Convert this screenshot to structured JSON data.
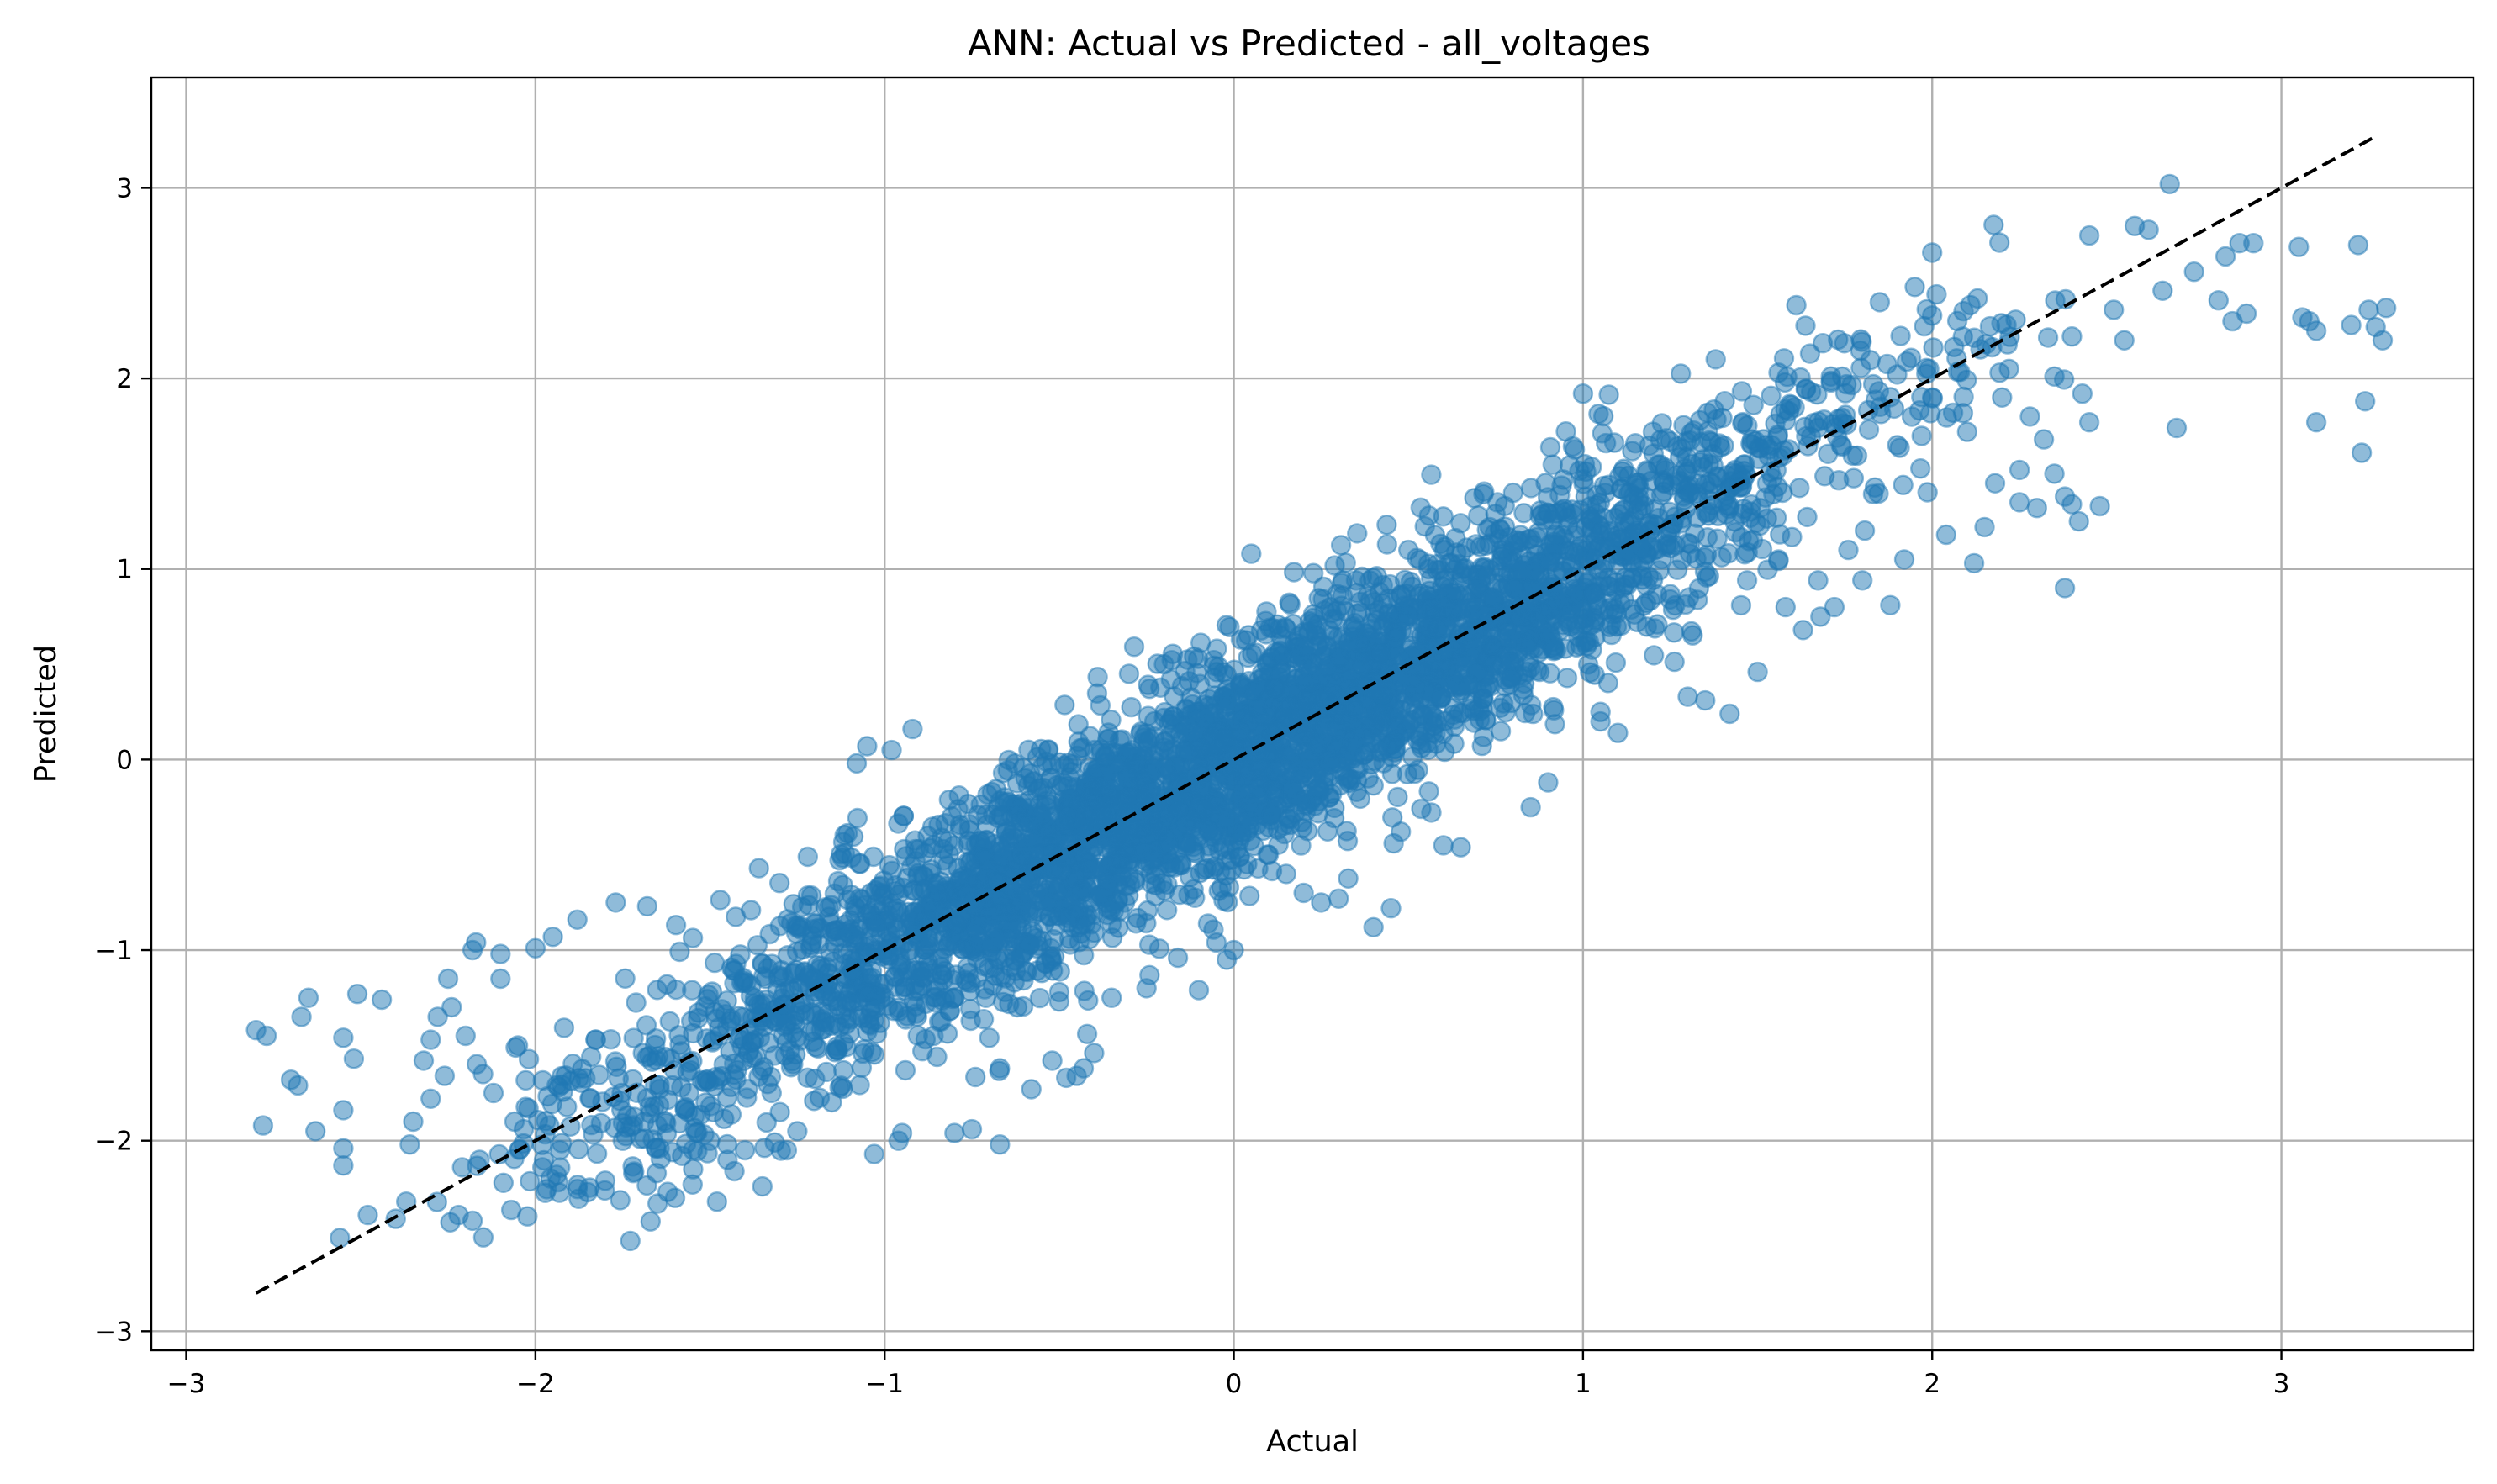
{
  "chart_data": {
    "type": "scatter",
    "title": "ANN: Actual vs Predicted - all_voltages",
    "xlabel": "Actual",
    "ylabel": "Predicted",
    "xlim": [
      -3.1,
      3.55
    ],
    "ylim": [
      -3.1,
      3.58
    ],
    "xticks": [
      -3,
      -2,
      -1,
      0,
      1,
      2,
      3
    ],
    "yticks": [
      -3,
      -2,
      -1,
      0,
      1,
      2,
      3
    ],
    "grid": true,
    "colors": {
      "points": "#1f77b4",
      "reference_line": "#000000",
      "grid": "#b0b0b0"
    },
    "reference_line": {
      "style": "dashed",
      "x": [
        -2.8,
        3.27
      ],
      "y": [
        -2.8,
        3.27
      ]
    },
    "distribution": {
      "n_dense": 4500,
      "center": 0,
      "spread": 0.85,
      "residual_sd": 0.28
    },
    "points": [
      [
        -2.8,
        -1.42
      ],
      [
        -2.77,
        -1.45
      ],
      [
        -2.78,
        -1.92
      ],
      [
        -2.7,
        -1.68
      ],
      [
        -2.68,
        -1.71
      ],
      [
        -2.67,
        -1.35
      ],
      [
        -2.65,
        -1.25
      ],
      [
        -2.63,
        -1.95
      ],
      [
        -2.56,
        -2.51
      ],
      [
        -2.55,
        -2.13
      ],
      [
        -2.55,
        -2.04
      ],
      [
        -2.55,
        -1.84
      ],
      [
        -2.55,
        -1.46
      ],
      [
        -2.52,
        -1.57
      ],
      [
        -2.51,
        -1.23
      ],
      [
        -2.48,
        -2.39
      ],
      [
        -2.44,
        -1.26
      ],
      [
        -2.4,
        -2.41
      ],
      [
        -2.37,
        -2.32
      ],
      [
        -2.36,
        -2.02
      ],
      [
        -2.35,
        -1.9
      ],
      [
        -2.3,
        -1.47
      ],
      [
        -2.26,
        -1.66
      ],
      [
        -2.22,
        -2.39
      ],
      [
        -2.21,
        -2.14
      ],
      [
        -2.18,
        -2.42
      ],
      [
        -2.17,
        -0.96
      ],
      [
        -2.1,
        -1.02
      ],
      [
        -2.02,
        -1.83
      ],
      [
        -2.0,
        -0.99
      ],
      [
        -1.98,
        -2.14
      ],
      [
        -1.95,
        -0.93
      ],
      [
        -1.88,
        -0.84
      ],
      [
        -1.85,
        -2.27
      ],
      [
        -1.8,
        -2.21
      ],
      [
        -1.77,
        -0.75
      ],
      [
        -1.72,
        -2.17
      ],
      [
        -1.68,
        -0.77
      ],
      [
        -1.65,
        -2.33
      ],
      [
        -1.6,
        -2.3
      ],
      [
        -1.55,
        -2.23
      ],
      [
        -1.48,
        -2.32
      ],
      [
        -1.43,
        -2.16
      ],
      [
        -1.36,
        -0.57
      ],
      [
        -1.35,
        -2.24
      ],
      [
        -1.28,
        -2.05
      ],
      [
        -1.22,
        -0.51
      ],
      [
        -1.08,
        -0.02
      ],
      [
        -1.05,
        0.07
      ],
      [
        -1.03,
        -2.07
      ],
      [
        -0.98,
        0.05
      ],
      [
        -0.96,
        -2.0
      ],
      [
        -0.95,
        -1.96
      ],
      [
        -0.92,
        0.16
      ],
      [
        -0.85,
        -1.56
      ],
      [
        -0.8,
        -1.96
      ],
      [
        -0.75,
        -1.94
      ],
      [
        -0.7,
        -1.46
      ],
      [
        -0.67,
        -1.62
      ],
      [
        -0.67,
        -2.02
      ],
      [
        -0.62,
        -1.3
      ],
      [
        -0.58,
        -1.73
      ],
      [
        -0.55,
        -1.12
      ],
      [
        -0.52,
        -1.58
      ],
      [
        -0.5,
        -1.22
      ],
      [
        -0.48,
        -1.67
      ],
      [
        -0.45,
        -1.66
      ],
      [
        -0.43,
        -1.62
      ],
      [
        -0.42,
        -1.44
      ],
      [
        -0.4,
        -1.54
      ],
      [
        -0.35,
        -1.25
      ],
      [
        -0.3,
        0.45
      ],
      [
        -0.28,
        -0.86
      ],
      [
        -0.25,
        -1.2
      ],
      [
        -0.2,
        0.5
      ],
      [
        -0.18,
        0.42
      ],
      [
        -0.16,
        -1.04
      ],
      [
        -0.13,
        -0.71
      ],
      [
        -0.1,
        -1.21
      ],
      [
        -0.05,
        -0.96
      ],
      [
        -0.02,
        -1.05
      ],
      [
        0.0,
        -1.0
      ],
      [
        0.02,
        0.63
      ],
      [
        0.05,
        1.08
      ],
      [
        0.1,
        -0.5
      ],
      [
        0.15,
        -0.6
      ],
      [
        0.2,
        -0.7
      ],
      [
        0.25,
        -0.75
      ],
      [
        0.3,
        -0.73
      ],
      [
        0.35,
        0.94
      ],
      [
        0.4,
        -0.88
      ],
      [
        0.45,
        -0.78
      ],
      [
        0.5,
        1.1
      ],
      [
        0.6,
        -0.45
      ],
      [
        0.65,
        -0.46
      ],
      [
        0.7,
        1.28
      ],
      [
        0.8,
        1.4
      ],
      [
        0.85,
        -0.25
      ],
      [
        0.9,
        -0.12
      ],
      [
        0.95,
        1.3
      ],
      [
        1.0,
        1.92
      ],
      [
        1.05,
        0.25
      ],
      [
        1.05,
        0.2
      ],
      [
        1.1,
        0.14
      ],
      [
        1.15,
        1.66
      ],
      [
        1.2,
        1.72
      ],
      [
        1.25,
        1.67
      ],
      [
        1.3,
        0.33
      ],
      [
        1.35,
        0.31
      ],
      [
        1.38,
        2.1
      ],
      [
        1.42,
        0.24
      ],
      [
        1.47,
        0.94
      ],
      [
        1.5,
        0.46
      ],
      [
        1.56,
        2.03
      ],
      [
        1.58,
        0.8
      ],
      [
        1.63,
        0.68
      ],
      [
        1.65,
        2.13
      ],
      [
        1.68,
        0.75
      ],
      [
        1.72,
        0.8
      ],
      [
        1.76,
        1.1
      ],
      [
        1.8,
        0.94
      ],
      [
        1.85,
        2.4
      ],
      [
        1.88,
        0.81
      ],
      [
        1.92,
        1.05
      ],
      [
        1.95,
        2.48
      ],
      [
        2.0,
        2.66
      ],
      [
        2.0,
        2.33
      ],
      [
        2.04,
        1.18
      ],
      [
        2.06,
        1.82
      ],
      [
        2.1,
        1.72
      ],
      [
        2.12,
        1.03
      ],
      [
        2.13,
        2.42
      ],
      [
        2.18,
        1.45
      ],
      [
        2.2,
        1.9
      ],
      [
        2.22,
        2.05
      ],
      [
        2.25,
        1.35
      ],
      [
        2.28,
        1.8
      ],
      [
        2.3,
        1.32
      ],
      [
        2.32,
        1.68
      ],
      [
        2.35,
        2.01
      ],
      [
        2.38,
        1.38
      ],
      [
        2.4,
        2.22
      ],
      [
        2.43,
        1.92
      ],
      [
        2.45,
        2.75
      ],
      [
        2.48,
        1.33
      ],
      [
        2.52,
        2.36
      ],
      [
        2.55,
        2.2
      ],
      [
        2.58,
        2.8
      ],
      [
        2.62,
        2.78
      ],
      [
        2.66,
        2.46
      ],
      [
        2.68,
        3.02
      ],
      [
        2.7,
        1.74
      ],
      [
        2.75,
        2.56
      ],
      [
        2.82,
        2.41
      ],
      [
        2.84,
        2.64
      ],
      [
        2.86,
        2.3
      ],
      [
        2.88,
        2.71
      ],
      [
        2.9,
        2.34
      ],
      [
        2.92,
        2.71
      ],
      [
        3.05,
        2.69
      ],
      [
        3.06,
        2.32
      ],
      [
        3.08,
        2.3
      ],
      [
        3.1,
        1.77
      ],
      [
        3.2,
        2.28
      ],
      [
        3.22,
        2.7
      ],
      [
        3.23,
        1.61
      ],
      [
        3.24,
        1.88
      ],
      [
        3.25,
        2.36
      ],
      [
        3.27,
        2.27
      ],
      [
        3.29,
        2.2
      ],
      [
        3.3,
        2.37
      ],
      [
        3.1,
        2.25
      ],
      [
        2.0,
        1.9
      ],
      [
        1.9,
        1.65
      ],
      [
        2.15,
        1.22
      ],
      [
        2.25,
        1.52
      ],
      [
        2.38,
        0.9
      ],
      [
        2.4,
        1.34
      ],
      [
        2.35,
        1.5
      ],
      [
        2.45,
        1.77
      ],
      [
        2.42,
        1.25
      ],
      [
        -2.25,
        -1.15
      ],
      [
        -2.3,
        -1.78
      ],
      [
        -2.15,
        -1.65
      ],
      [
        -2.1,
        -1.15
      ],
      [
        -2.12,
        -1.75
      ],
      [
        -2.05,
        -1.5
      ],
      [
        -2.2,
        -1.45
      ],
      [
        -2.18,
        -1.0
      ],
      [
        -2.28,
        -1.35
      ],
      [
        -2.32,
        -1.58
      ],
      [
        -2.24,
        -1.3
      ],
      [
        -2.16,
        -2.1
      ],
      [
        -2.06,
        -1.9
      ],
      [
        -1.96,
        -1.92
      ],
      [
        -1.93,
        -2.05
      ],
      [
        -1.75,
        -2.0
      ],
      [
        -1.7,
        -1.99
      ],
      [
        -1.58,
        -2.08
      ],
      [
        -1.5,
        -2.0
      ],
      [
        -1.45,
        -2.1
      ],
      [
        -1.4,
        -2.05
      ],
      [
        -1.3,
        -1.85
      ],
      [
        -1.25,
        -1.95
      ]
    ]
  }
}
